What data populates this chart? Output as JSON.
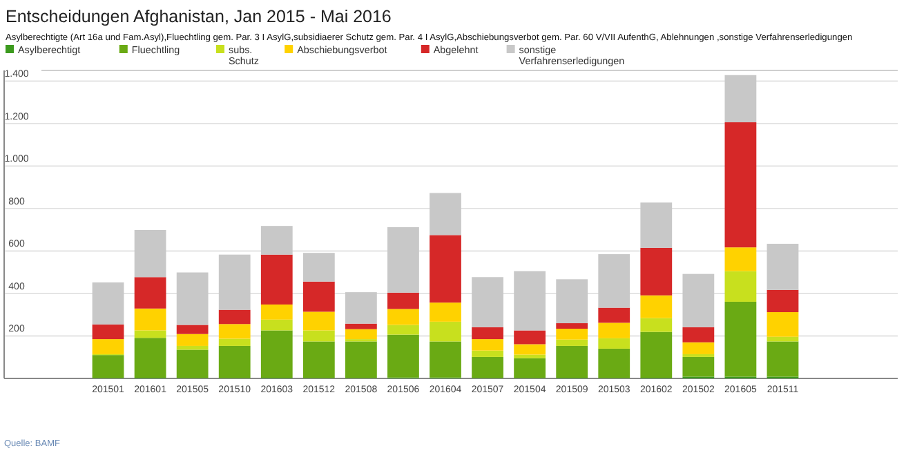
{
  "chart_data": {
    "type": "bar",
    "stacked": true,
    "title": "Entscheidungen Afghanistan, Jan 2015 - Mai 2016",
    "subtitle": "Asylberechtigte (Art 16a und Fam.Asyl),Fluechtling gem. Par. 3 I AsylG,subsidiaerer Schutz gem. Par. 4 I AsylG,Abschiebungsverbot gem. Par. 60 V/VII AufenthG, Ablehnungen ,sonstige Verfahrenserledigungen",
    "categories": [
      "201501",
      "201601",
      "201505",
      "201510",
      "201603",
      "201512",
      "201508",
      "201506",
      "201604",
      "201507",
      "201504",
      "201509",
      "201503",
      "201602",
      "201502",
      "201605",
      "201511"
    ],
    "series": [
      {
        "name": "Asylberechtigt",
        "color": "#3c9a1e",
        "values": [
          2,
          3,
          2,
          2,
          3,
          2,
          2,
          4,
          4,
          2,
          2,
          3,
          2,
          3,
          8,
          8,
          8
        ]
      },
      {
        "name": "Fluechtling",
        "color": "#6aaa14",
        "values": [
          108,
          188,
          133,
          151,
          223,
          172,
          172,
          202,
          170,
          99,
          93,
          150,
          138,
          216,
          93,
          353,
          166
        ]
      },
      {
        "name": "subs. Schutz",
        "color": "#c8e01e",
        "values": [
          4,
          35,
          18,
          34,
          51,
          52,
          11,
          46,
          93,
          30,
          17,
          30,
          49,
          65,
          13,
          144,
          22
        ]
      },
      {
        "name": "Abschiebungsverbot",
        "color": "#ffd200",
        "values": [
          71,
          103,
          56,
          69,
          71,
          88,
          47,
          75,
          90,
          54,
          49,
          51,
          73,
          107,
          56,
          112,
          116
        ]
      },
      {
        "name": "Abgelehnt",
        "color": "#d62828",
        "values": [
          69,
          148,
          43,
          67,
          235,
          142,
          26,
          77,
          318,
          56,
          65,
          26,
          71,
          224,
          71,
          589,
          105
        ]
      },
      {
        "name": "sonstige Verfahrenserledigungen",
        "color": "#c8c8c8",
        "values": [
          198,
          222,
          247,
          260,
          135,
          135,
          148,
          308,
          198,
          236,
          279,
          207,
          252,
          213,
          251,
          222,
          217
        ]
      }
    ],
    "ylim": [
      0,
      1450
    ],
    "yticks": [
      {
        "value": 200,
        "label": "200"
      },
      {
        "value": 400,
        "label": "400"
      },
      {
        "value": 600,
        "label": "600"
      },
      {
        "value": 800,
        "label": "800"
      },
      {
        "value": 1000,
        "label": "1.000"
      },
      {
        "value": 1200,
        "label": "1.200"
      },
      {
        "value": 1400,
        "label": "1.400"
      }
    ],
    "grid": "y",
    "legend": "top left",
    "annotations": [
      "Quelle: BAMF"
    ]
  }
}
